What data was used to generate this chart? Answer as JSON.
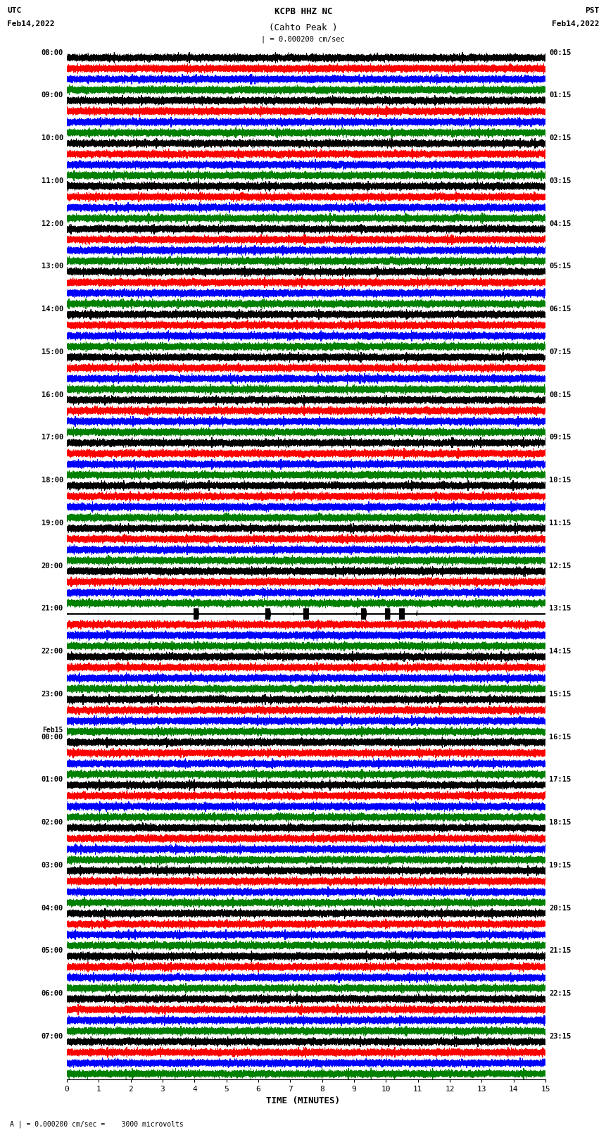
{
  "title_line1": "KCPB HHZ NC",
  "title_line2": "(Cahto Peak )",
  "scale_label": "| = 0.000200 cm/sec",
  "bottom_label": "A | = 0.000200 cm/sec =    3000 microvolts",
  "xlabel": "TIME (MINUTES)",
  "left_label_line1": "UTC",
  "left_label_line2": "Feb14,2022",
  "right_label_line1": "PST",
  "right_label_line2": "Feb14,2022",
  "left_times": [
    "08:00",
    "09:00",
    "10:00",
    "11:00",
    "12:00",
    "13:00",
    "14:00",
    "15:00",
    "16:00",
    "17:00",
    "18:00",
    "19:00",
    "20:00",
    "21:00",
    "22:00",
    "23:00",
    "Feb15",
    "00:00",
    "01:00",
    "02:00",
    "03:00",
    "04:00",
    "05:00",
    "06:00",
    "07:00"
  ],
  "right_times": [
    "00:15",
    "01:15",
    "02:15",
    "03:15",
    "04:15",
    "05:15",
    "06:15",
    "07:15",
    "08:15",
    "09:15",
    "10:15",
    "11:15",
    "12:15",
    "13:15",
    "14:15",
    "15:15",
    "16:15",
    "17:15",
    "18:15",
    "19:15",
    "20:15",
    "21:15",
    "22:15",
    "23:15"
  ],
  "n_rows": 24,
  "traces_per_row": 4,
  "colors": [
    "black",
    "red",
    "blue",
    "green"
  ],
  "bg_color": "white",
  "fig_width": 8.5,
  "fig_height": 16.13,
  "dpi": 100
}
